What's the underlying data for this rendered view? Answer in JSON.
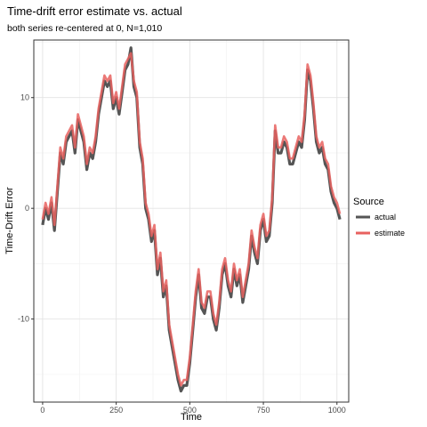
{
  "chart_data": {
    "type": "line",
    "title": "Time-drift error estimate vs. actual",
    "subtitle": "both series re-centered at 0, N=1,010",
    "xlabel": "Time",
    "ylabel": "Time-Drift Error",
    "xlim": [
      -30,
      1040
    ],
    "ylim": [
      -17.5,
      15.2
    ],
    "x_ticks": [
      0,
      250,
      500,
      750,
      1000
    ],
    "x_tick_labels": [
      "0",
      "250",
      "500",
      "750",
      "1000"
    ],
    "y_ticks": [
      -10,
      0,
      10
    ],
    "y_tick_labels": [
      "-10",
      "0",
      "10"
    ],
    "grid": true,
    "legend": {
      "title": "Source",
      "position": "right"
    },
    "series": [
      {
        "name": "actual",
        "color": "#555555",
        "x": [
          0,
          10,
          20,
          30,
          40,
          50,
          60,
          70,
          80,
          90,
          100,
          110,
          120,
          130,
          140,
          150,
          160,
          170,
          180,
          190,
          200,
          210,
          220,
          230,
          240,
          250,
          260,
          270,
          280,
          290,
          300,
          310,
          320,
          330,
          340,
          350,
          360,
          370,
          380,
          390,
          400,
          410,
          420,
          430,
          440,
          450,
          460,
          470,
          480,
          490,
          500,
          510,
          520,
          530,
          540,
          550,
          560,
          570,
          580,
          590,
          600,
          610,
          620,
          630,
          640,
          650,
          660,
          670,
          680,
          690,
          700,
          710,
          720,
          730,
          740,
          750,
          760,
          770,
          780,
          790,
          800,
          810,
          820,
          830,
          840,
          850,
          860,
          870,
          880,
          890,
          900,
          910,
          920,
          930,
          940,
          950,
          960,
          970,
          980,
          990,
          1000,
          1010
        ],
        "y": [
          -1.5,
          0,
          -1,
          0.5,
          -2,
          1.5,
          5,
          4,
          6,
          6.5,
          7,
          5,
          8,
          7,
          6,
          3.5,
          5,
          4.5,
          6,
          8.5,
          10,
          11.5,
          11,
          11.5,
          9,
          10,
          8.5,
          10.5,
          12.5,
          13,
          14.5,
          11,
          10,
          5.5,
          4,
          0,
          -1,
          -3,
          -2,
          -6,
          -4.5,
          -8,
          -7,
          -11,
          -12.5,
          -14,
          -15.5,
          -16.5,
          -16,
          -16,
          -14,
          -11,
          -8,
          -6,
          -9,
          -9.5,
          -8,
          -8,
          -10,
          -11,
          -9,
          -6,
          -5,
          -7,
          -8,
          -5.5,
          -7,
          -6,
          -8.5,
          -7,
          -5.5,
          -2.5,
          -4,
          -5,
          -2,
          -1,
          -3,
          -2.5,
          0.5,
          7,
          5,
          5,
          6,
          5.5,
          4,
          4,
          5,
          6,
          5.5,
          8,
          12.5,
          11.5,
          9,
          6,
          5,
          5.5,
          4,
          3.5,
          1.5,
          0.5,
          0,
          -1
        ]
      },
      {
        "name": "estimate",
        "color": "#E8615F",
        "x": [
          0,
          10,
          20,
          30,
          40,
          50,
          60,
          70,
          80,
          90,
          100,
          110,
          120,
          130,
          140,
          150,
          160,
          170,
          180,
          190,
          200,
          210,
          220,
          230,
          240,
          250,
          260,
          270,
          280,
          290,
          300,
          310,
          320,
          330,
          340,
          350,
          360,
          370,
          380,
          390,
          400,
          410,
          420,
          430,
          440,
          450,
          460,
          470,
          480,
          490,
          500,
          510,
          520,
          530,
          540,
          550,
          560,
          570,
          580,
          590,
          600,
          610,
          620,
          630,
          640,
          650,
          660,
          670,
          680,
          690,
          700,
          710,
          720,
          730,
          740,
          750,
          760,
          770,
          780,
          790,
          800,
          810,
          820,
          830,
          840,
          850,
          860,
          870,
          880,
          890,
          900,
          910,
          920,
          930,
          940,
          950,
          960,
          970,
          980,
          990,
          1000,
          1010
        ],
        "y": [
          -1,
          0.5,
          -0.5,
          1,
          -1.5,
          2,
          5.5,
          4.5,
          6.5,
          7,
          7.5,
          5.5,
          8.5,
          7.5,
          6.5,
          4,
          5.5,
          5,
          6.5,
          9,
          10.5,
          12,
          11.5,
          12,
          9.5,
          10.5,
          9,
          11,
          13,
          13.5,
          14,
          11.5,
          10.5,
          6,
          4.5,
          0.5,
          -0.5,
          -2.5,
          -1.5,
          -5.5,
          -4,
          -7.5,
          -6.5,
          -10.5,
          -12,
          -13.5,
          -15,
          -16,
          -15.5,
          -15.5,
          -13.5,
          -10.5,
          -7.5,
          -5.5,
          -8.5,
          -9,
          -7.5,
          -7.5,
          -9.5,
          -10.5,
          -8.5,
          -5.5,
          -4.5,
          -6.5,
          -7.5,
          -5,
          -6.5,
          -5.5,
          -8,
          -6.5,
          -5,
          -2,
          -3.5,
          -4.5,
          -1.5,
          -0.5,
          -2.5,
          -2,
          1,
          7.5,
          5.5,
          5.5,
          6.5,
          6,
          4.5,
          4.5,
          5.5,
          6.5,
          6,
          8.5,
          13,
          12,
          9.5,
          6.5,
          5.5,
          6,
          4.5,
          4,
          2,
          1,
          0.5,
          -0.5
        ]
      }
    ]
  }
}
